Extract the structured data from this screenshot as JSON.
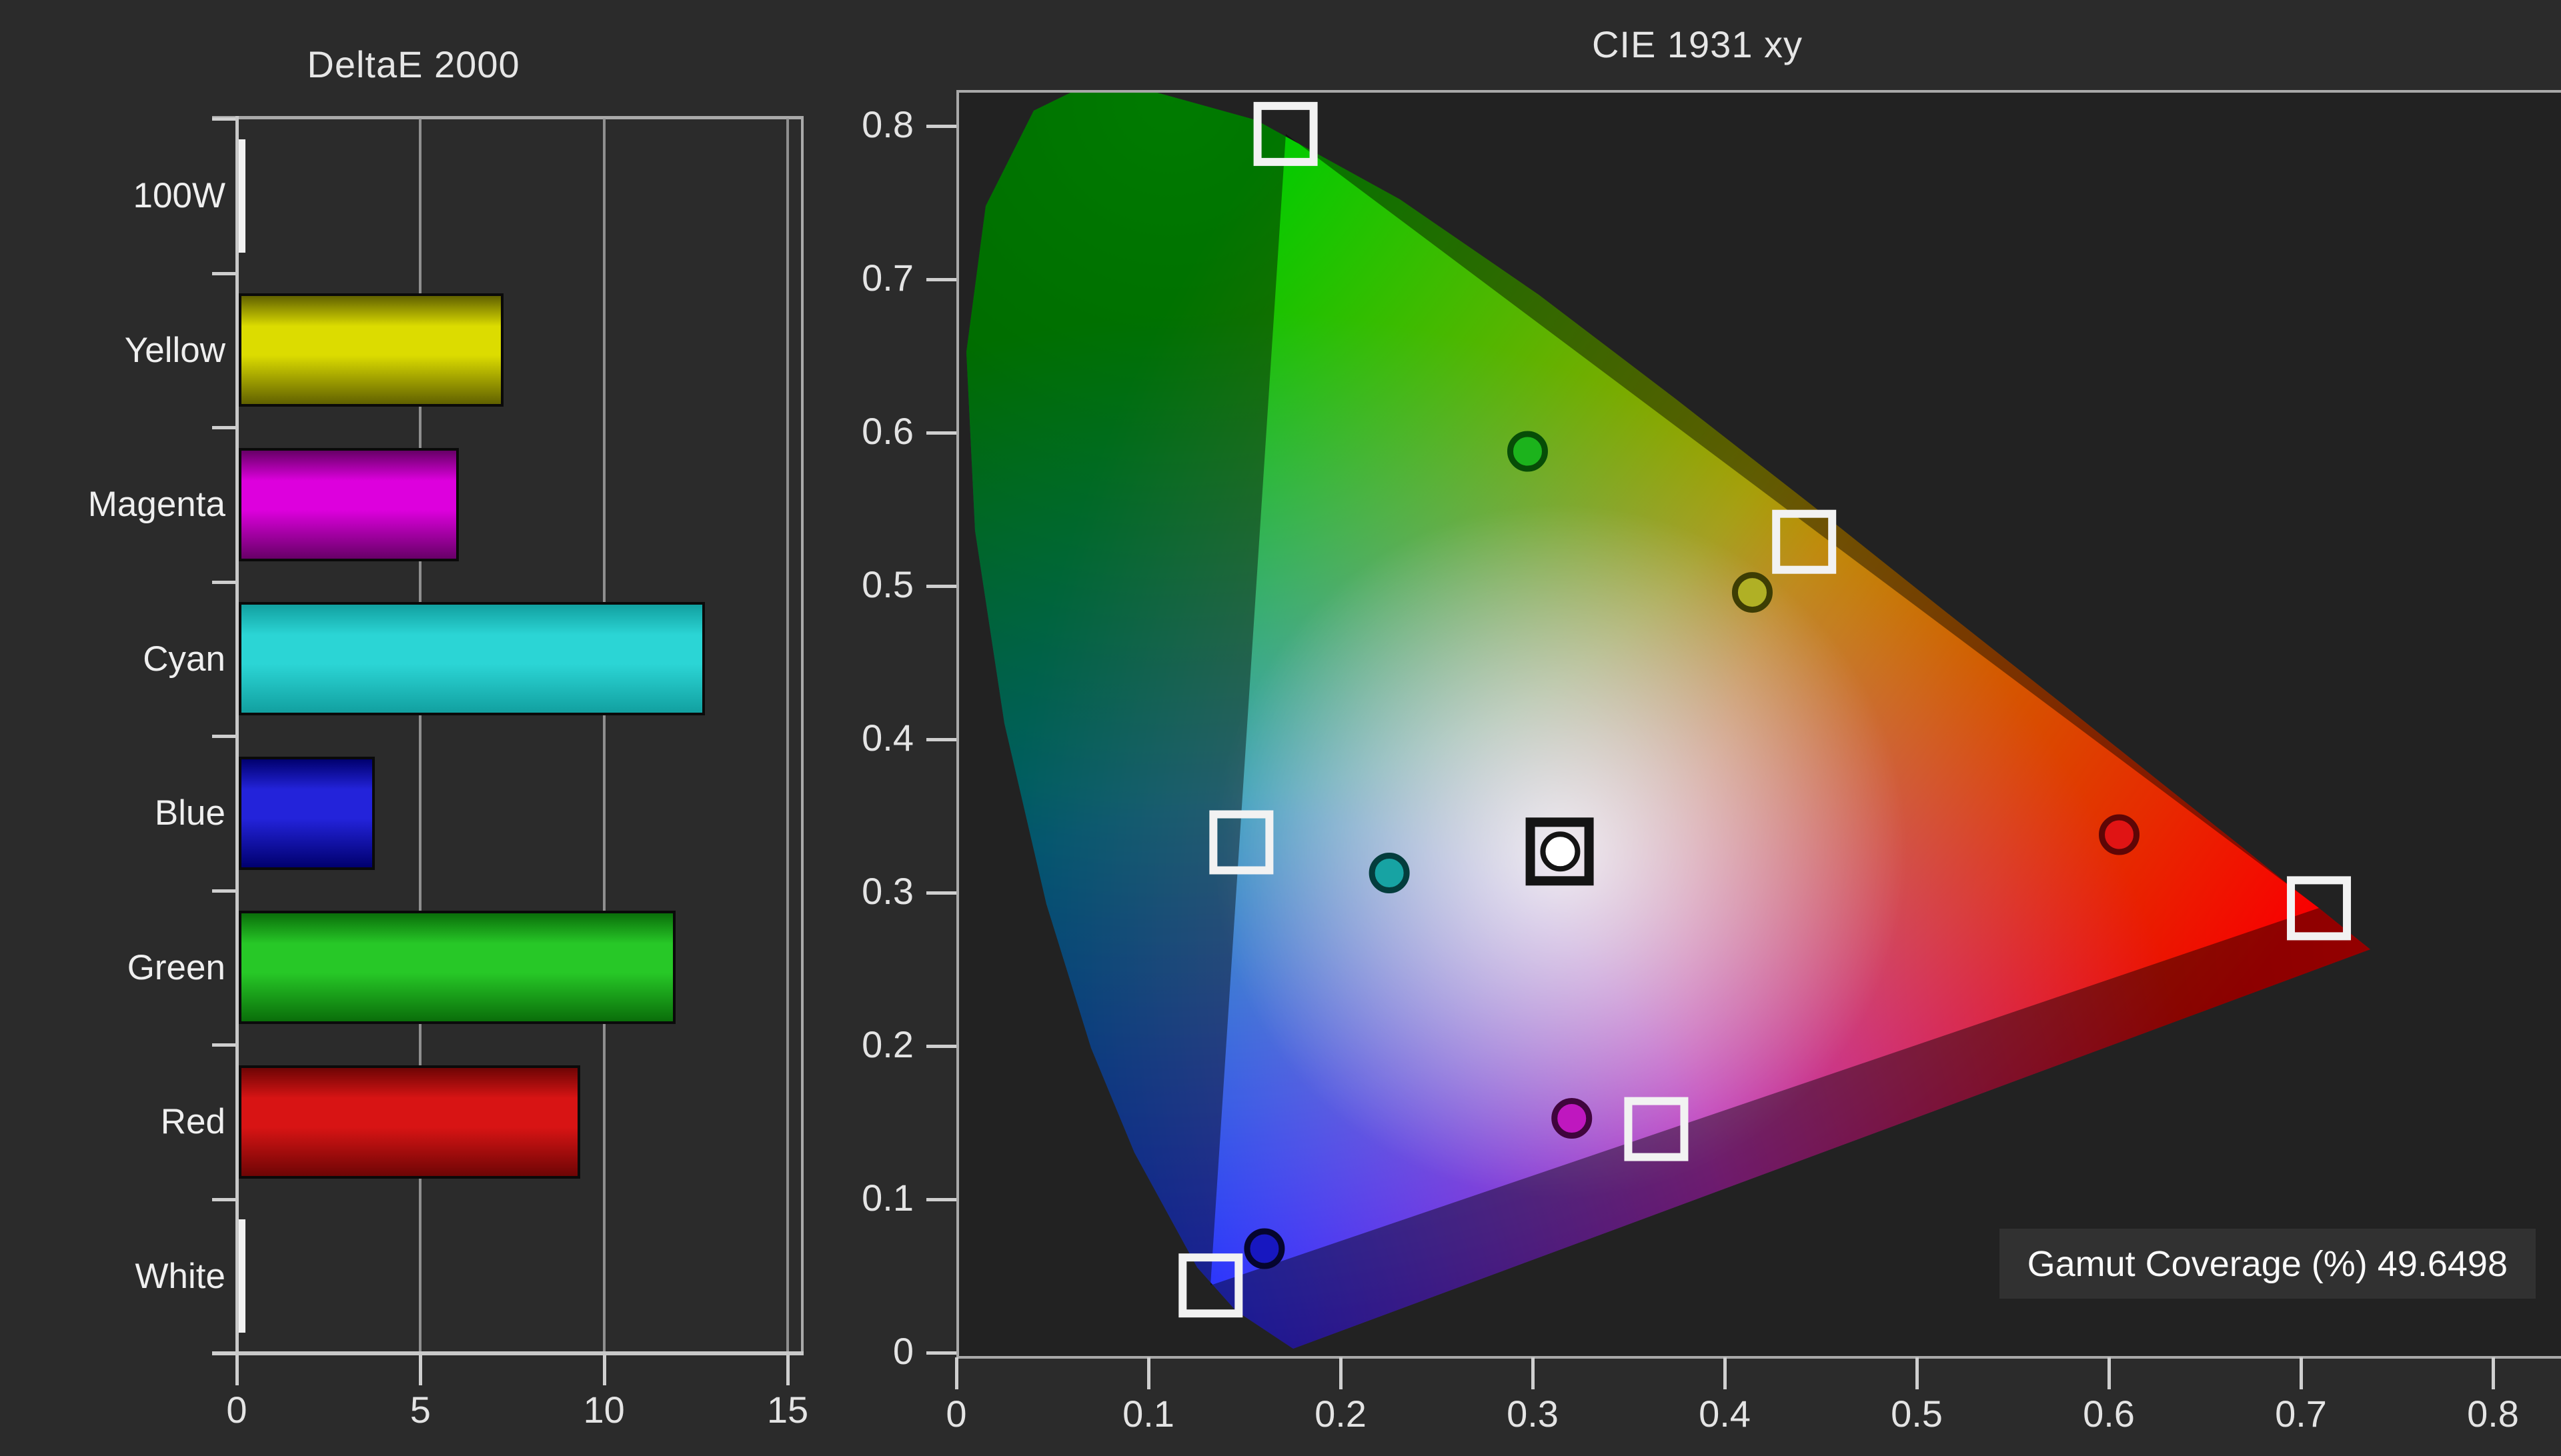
{
  "window": {
    "background": "#2b2b2b",
    "plot_background": "#222222"
  },
  "chart_data": [
    {
      "type": "bar",
      "title": "DeltaE 2000",
      "orientation": "horizontal",
      "categories": [
        "100W",
        "Yellow",
        "Magenta",
        "Cyan",
        "Blue",
        "Green",
        "Red",
        "White"
      ],
      "values": [
        0.12,
        7.2,
        6.0,
        12.7,
        3.7,
        11.9,
        9.3,
        0.12
      ],
      "xlim": [
        0,
        15
      ],
      "x_ticks": [
        "0",
        "5",
        "10",
        "15"
      ],
      "grid": "vertical-on",
      "bar_styles": [
        {
          "bright": "#ffffff",
          "dark": "#e0e0e0",
          "border": "#f2f2f2",
          "outline_only": true
        },
        {
          "bright": "#dcdc00",
          "dark": "#616100",
          "border": "#0a0a0a",
          "outline_only": false
        },
        {
          "bright": "#dd00dd",
          "dark": "#670067",
          "border": "#0a0a0a",
          "outline_only": false
        },
        {
          "bright": "#2bd5d5",
          "dark": "#12a0a0",
          "border": "#0a0a0a",
          "outline_only": false
        },
        {
          "bright": "#2323da",
          "dark": "#00006e",
          "border": "#0a0a0a",
          "outline_only": false
        },
        {
          "bright": "#27c827",
          "dark": "#0a6e0a",
          "border": "#0a0a0a",
          "outline_only": false
        },
        {
          "bright": "#d81414",
          "dark": "#6e0505",
          "border": "#0a0a0a",
          "outline_only": false
        },
        {
          "bright": "#ffffff",
          "dark": "#e0e0e0",
          "border": "#f2f2f2",
          "outline_only": true
        }
      ]
    },
    {
      "type": "scatter",
      "title": "CIE 1931 xy",
      "x_ticks": [
        "0",
        "0.1",
        "0.2",
        "0.3",
        "0.4",
        "0.5",
        "0.6",
        "0.7",
        "0.8"
      ],
      "y_ticks": [
        "0",
        "0.1",
        "0.2",
        "0.3",
        "0.4",
        "0.5",
        "0.6",
        "0.7",
        "0.8"
      ],
      "xlim": [
        0,
        0.8347
      ],
      "ylim": [
        0,
        0.8239
      ],
      "annotation": "Gamut Coverage (%) 49.6498",
      "reference_triangle": {
        "name": "target-gamut",
        "green": [
          0.17,
          0.797
        ],
        "red": [
          0.708,
          0.292
        ],
        "blue": [
          0.131,
          0.046
        ]
      },
      "target_points": [
        {
          "name": "white",
          "x": 0.3127,
          "y": 0.329
        },
        {
          "name": "red",
          "x": 0.708,
          "y": 0.292
        },
        {
          "name": "green",
          "x": 0.17,
          "y": 0.797
        },
        {
          "name": "blue",
          "x": 0.131,
          "y": 0.046
        },
        {
          "name": "cyan",
          "x": 0.147,
          "y": 0.335
        },
        {
          "name": "magenta",
          "x": 0.363,
          "y": 0.148
        },
        {
          "name": "yellow",
          "x": 0.44,
          "y": 0.531
        }
      ],
      "measured_points": [
        {
          "name": "white",
          "x": 0.313,
          "y": 0.329,
          "fill": "#ffffff",
          "ring": "#141414"
        },
        {
          "name": "red",
          "x": 0.604,
          "y": 0.34,
          "fill": "#e01414",
          "ring": "#5e0606"
        },
        {
          "name": "green",
          "x": 0.296,
          "y": 0.59,
          "fill": "#1cb31c",
          "ring": "#074d07"
        },
        {
          "name": "blue",
          "x": 0.159,
          "y": 0.07,
          "fill": "#1717c0",
          "ring": "#05052e"
        },
        {
          "name": "cyan",
          "x": 0.224,
          "y": 0.315,
          "fill": "#17a3a3",
          "ring": "#043d3d"
        },
        {
          "name": "magenta",
          "x": 0.319,
          "y": 0.155,
          "fill": "#bf17bf",
          "ring": "#40053d"
        },
        {
          "name": "yellow",
          "x": 0.413,
          "y": 0.498,
          "fill": "#b0b025",
          "ring": "#3d3d04"
        }
      ]
    }
  ]
}
